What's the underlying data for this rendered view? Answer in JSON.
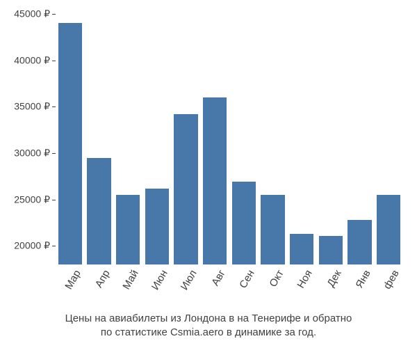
{
  "chart": {
    "type": "bar",
    "background_color": "#ffffff",
    "bar_color": "#4878a9",
    "text_color": "#404040",
    "tick_fontsize": 14,
    "xlabel_fontsize": 15,
    "caption_fontsize": 15,
    "ylim": [
      18000,
      45000
    ],
    "ytick_step": 5000,
    "yticks": [
      20000,
      25000,
      30000,
      35000,
      40000,
      45000
    ],
    "ytick_labels": [
      "20000 ₽",
      "25000 ₽",
      "30000 ₽",
      "35000 ₽",
      "40000 ₽",
      "45000 ₽"
    ],
    "categories": [
      "Мар",
      "Апр",
      "Май",
      "Июн",
      "Июл",
      "Авг",
      "Сен",
      "Окт",
      "Ноя",
      "Дек",
      "Янв",
      "фев"
    ],
    "values": [
      44000,
      29500,
      25500,
      26200,
      34200,
      36000,
      26900,
      25500,
      21300,
      21100,
      22800,
      25500
    ],
    "bar_width_ratio": 0.82,
    "x_label_rotation_deg": -60,
    "caption_line1": "Цены на авиабилеты из Лондона в на Тенерифе и обратно",
    "caption_line2": "по статистике Csmia.aero в динамике за год."
  }
}
